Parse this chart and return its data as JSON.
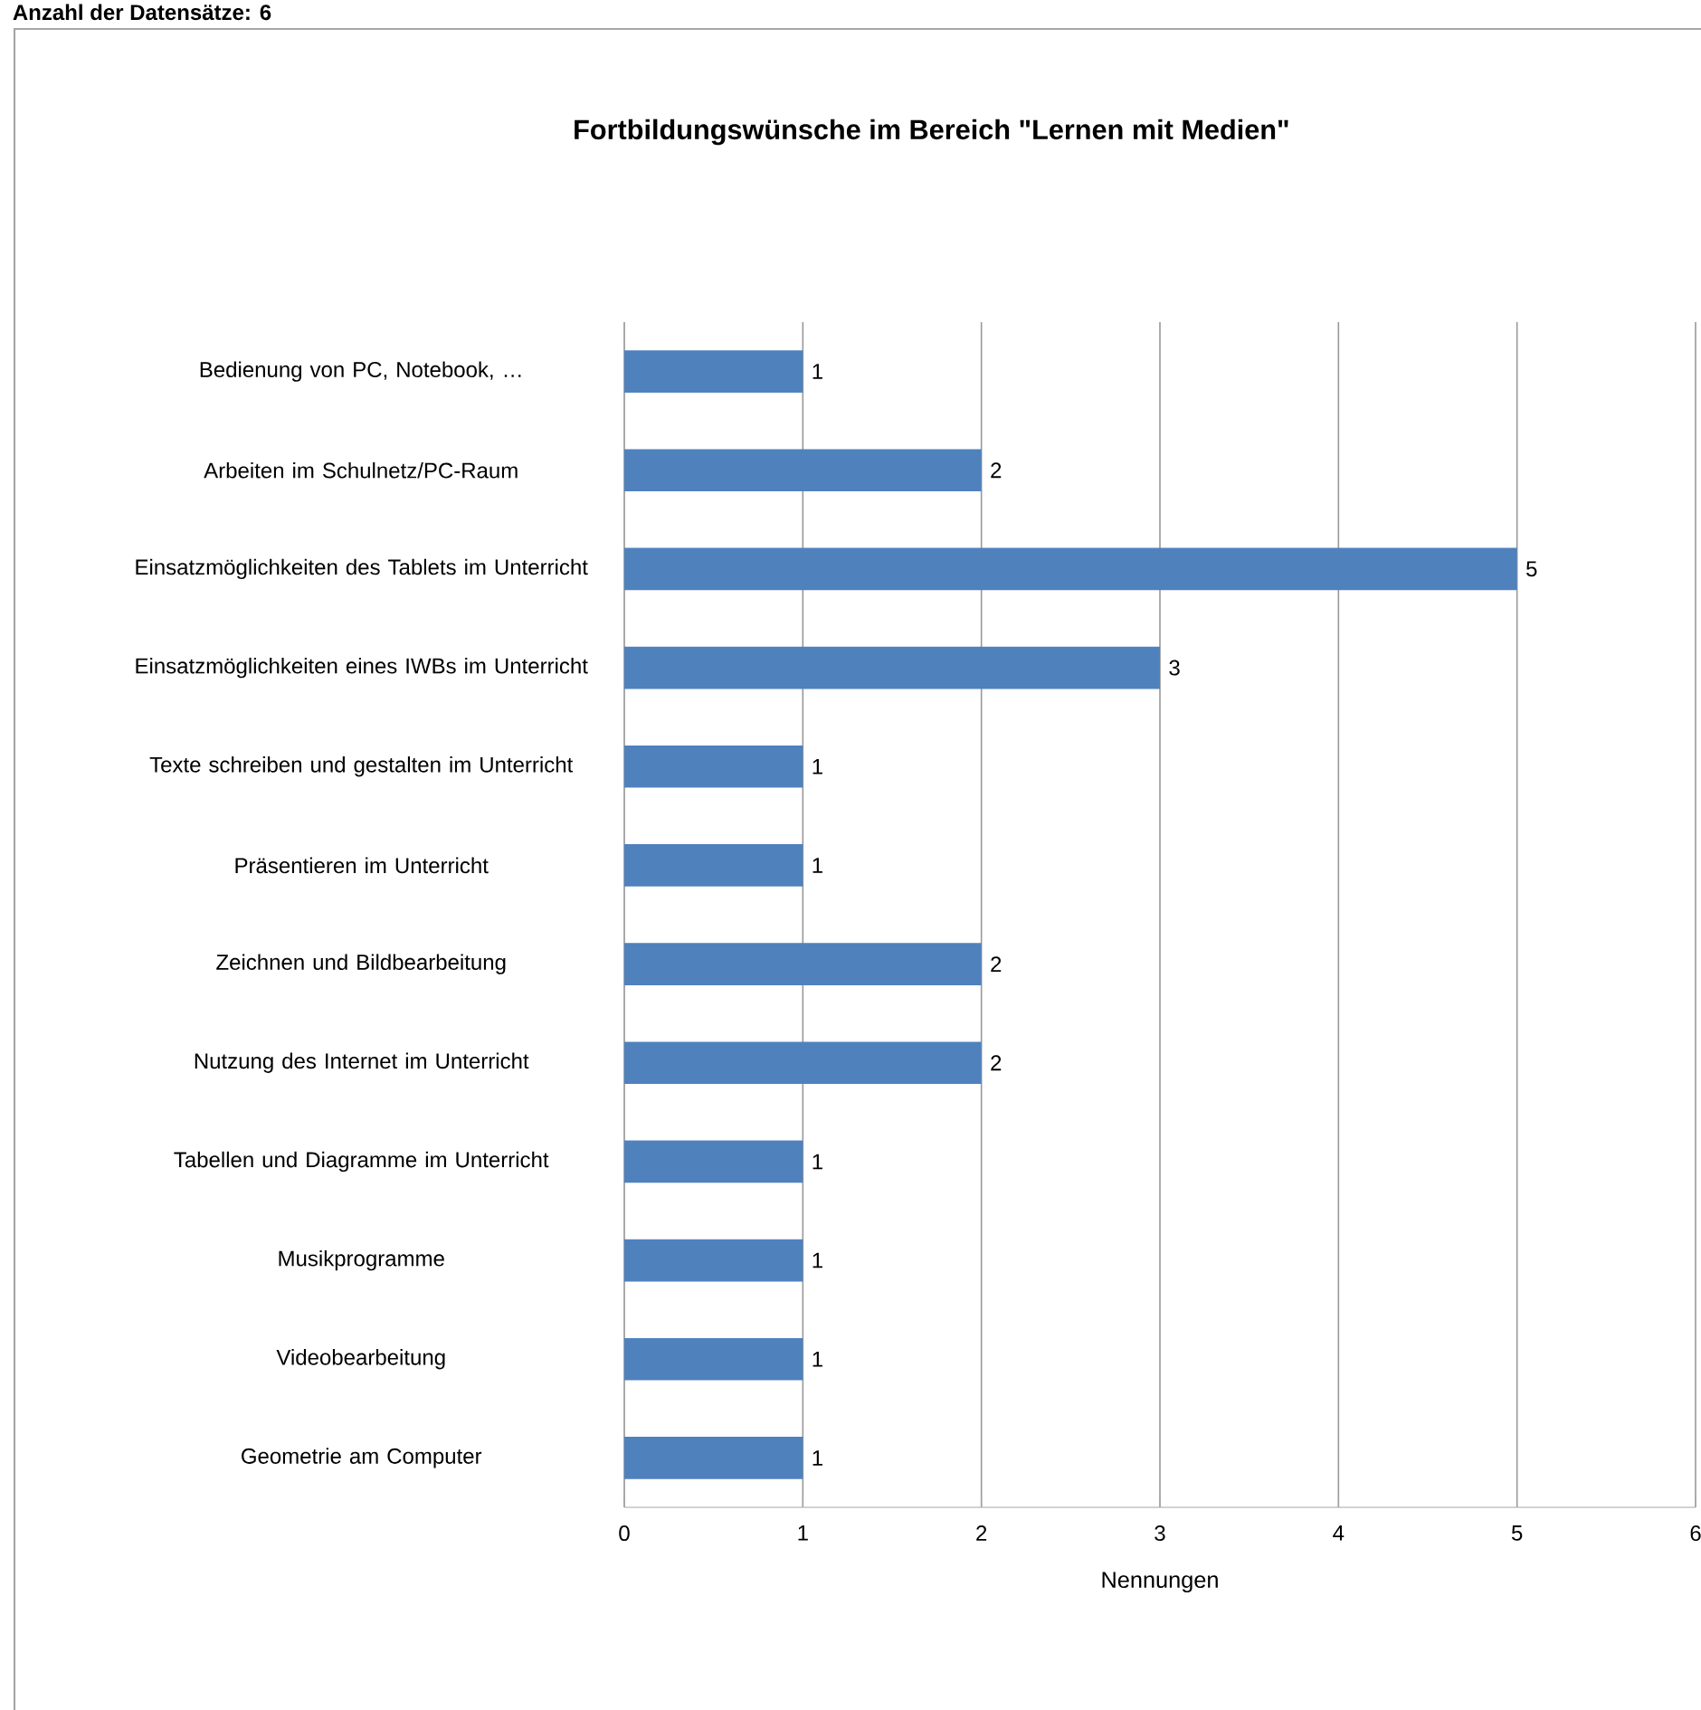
{
  "chart_data": {
    "type": "bar",
    "orientation": "horizontal",
    "title": "Fortbildungswünsche  im  Bereich \"Lernen mit Medien\"",
    "xlabel": "Nennungen",
    "annotations": [
      "Anzahl der Datensätze: 6"
    ],
    "categories": [
      "Bedienung von PC, Notebook, …",
      "Arbeiten im Schulnetz/PC-Raum",
      "Einsatzmöglichkeiten des Tablets im Unterricht",
      "Einsatzmöglichkeiten eines IWBs im Unterricht",
      "Texte schreiben und gestalten im Unterricht",
      "Präsentieren im Unterricht",
      "Zeichnen und Bildbearbeitung",
      "Nutzung des Internet im Unterricht",
      "Tabellen und Diagramme im Unterricht",
      "Musikprogramme",
      "Videobearbeitung",
      "Geometrie am Computer"
    ],
    "values": [
      1,
      2,
      5,
      3,
      1,
      1,
      2,
      2,
      1,
      1,
      1,
      1
    ],
    "color": "#4f81bd",
    "xlim": [
      0,
      6
    ],
    "xticks": [
      0,
      1,
      2,
      3,
      4,
      5,
      6
    ],
    "grid": "x",
    "data_labels": true
  }
}
